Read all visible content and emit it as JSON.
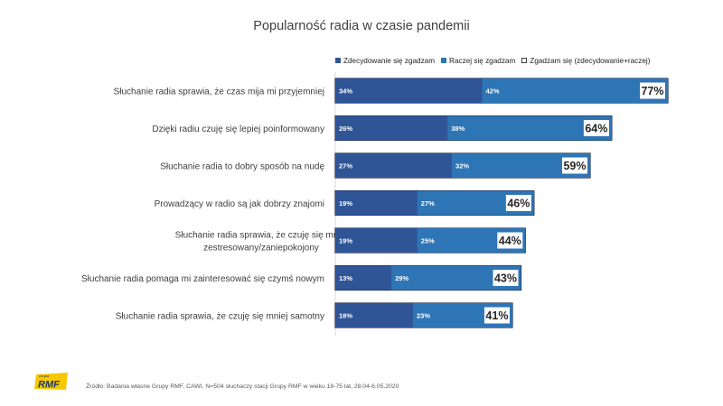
{
  "chart_data": {
    "type": "bar",
    "orientation": "horizontal",
    "stacked": true,
    "title": "Popularność radia w czasie pandemii",
    "categories": [
      "Słuchanie radia sprawia, że czas mija mi przyjemniej",
      "Dzięki radiu czuję się lepiej poinformowany",
      "Słuchanie radia to dobry sposób na nudę",
      "Prowadzący w radio są jak dobrzy znajomi",
      "Słuchanie radia sprawia, że czuję się mniej zestresowany/zaniepokojony",
      "Słuchanie radia pomaga mi zainteresować się czymś nowym",
      "Słuchanie radia sprawia, że czuję się mniej samotny"
    ],
    "category_lines": [
      [
        "Słuchanie radia sprawia, że czas mija mi przyjemniej"
      ],
      [
        "Dzięki radiu czuję się lepiej poinformowany"
      ],
      [
        "Słuchanie radia to dobry sposób na nudę"
      ],
      [
        "Prowadzący w radio są jak dobrzy znajomi"
      ],
      [
        "Słuchanie radia sprawia, że czuję się mniej",
        "zestresowany/zaniepokojony"
      ],
      [
        "Słuchanie radia pomaga mi zainteresować się czymś nowym"
      ],
      [
        "Słuchanie radia sprawia, że czuję się mniej samotny"
      ]
    ],
    "series": [
      {
        "name": "Zdecydowanie się zgadzam",
        "values": [
          34,
          26,
          27,
          19,
          19,
          13,
          18
        ],
        "color": "#2f5597"
      },
      {
        "name": "Raczej się zgadzam",
        "values": [
          42,
          38,
          32,
          27,
          25,
          29,
          23
        ],
        "color": "#2e75b6"
      }
    ],
    "total_series": {
      "name": "Zgadzam się (zdecydowanie+raczej)",
      "values": [
        77,
        64,
        59,
        46,
        44,
        43,
        41
      ]
    },
    "xlim": [
      0,
      77
    ],
    "value_suffix": "%",
    "grid": false,
    "legend_position": "top-right"
  },
  "footer": {
    "source": "Źródło: Badania własne Grupy RMF, CAWI, N=504 słuchaczy stacji Grupy RMF w wieku 18-75 lat, 28.04-6.05.2020"
  },
  "logo": {
    "small_text": "Grupa",
    "text": "RMF",
    "color": "#f7c800"
  }
}
